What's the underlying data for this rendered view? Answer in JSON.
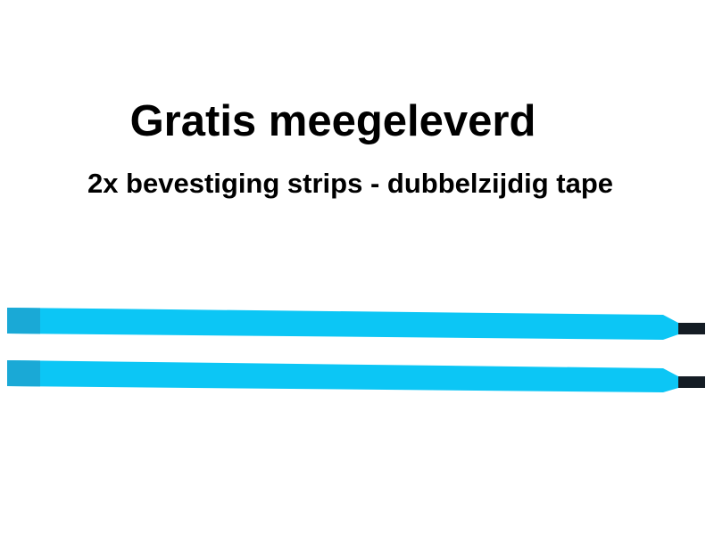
{
  "title": "Gratis meegeleverd",
  "subtitle": "2x bevestiging strips - dubbelzijdig tape",
  "colors": {
    "strip": "#0cc6f5",
    "strip_end": "#1aa9d6",
    "tab": "#141c24"
  },
  "strip_count": 2
}
